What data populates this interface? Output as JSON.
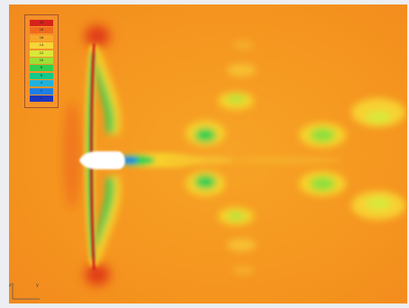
{
  "image": {
    "subject": "CFD contour plot of flow field around a turbine blade and hub",
    "background_color": "#f5951f",
    "colors": {
      "high": "#e01c10",
      "mid_high": "#f08c1c",
      "mid": "#f7d22a",
      "low_mid": "#1fd35a",
      "low": "#1d6ee6",
      "lowest": "#1c2fb0"
    }
  },
  "legend": {
    "labels": [
      "20",
      "18",
      "16",
      "14",
      "12",
      "10",
      "8",
      "6",
      "4",
      "2",
      "0"
    ],
    "colors": [
      "#d6231a",
      "#f06a1e",
      "#f7a62a",
      "#f5d538",
      "#d8e83a",
      "#9be034",
      "#2fd04f",
      "#10c98a",
      "#1fb2dc",
      "#1d7fe6",
      "#1c36c0"
    ]
  },
  "axes": {
    "x_label": "z",
    "y_label": "y"
  }
}
